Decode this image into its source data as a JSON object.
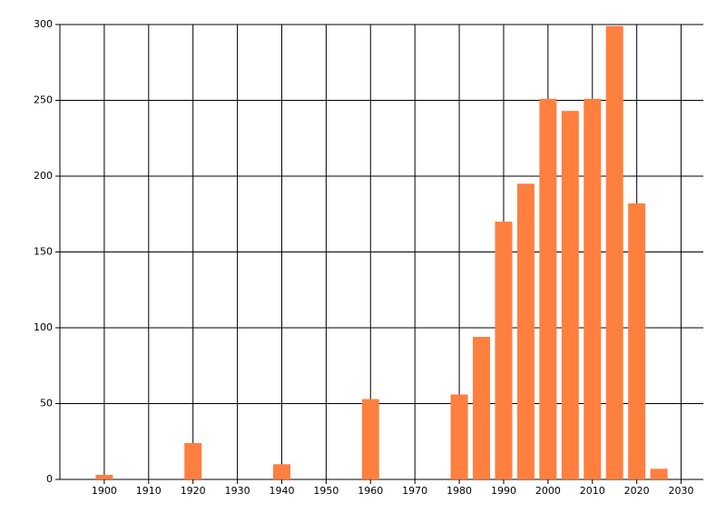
{
  "chart_data": {
    "type": "bar",
    "x": [
      1900,
      1920,
      1940,
      1960,
      1980,
      1985,
      1990,
      1995,
      2000,
      2005,
      2010,
      2015,
      2020,
      2025
    ],
    "values": [
      3,
      24,
      10,
      53,
      56,
      94,
      170,
      195,
      251,
      243,
      251,
      299,
      182,
      7
    ],
    "color": "#ff7f3f",
    "xlim": [
      1890,
      2035
    ],
    "xticks": [
      1900,
      1910,
      1920,
      1930,
      1940,
      1950,
      1960,
      1970,
      1980,
      1990,
      2000,
      2010,
      2020,
      2030
    ],
    "ylim": [
      0,
      300
    ],
    "yticks": [
      0,
      50,
      100,
      150,
      200,
      250,
      300
    ],
    "grid": true
  }
}
